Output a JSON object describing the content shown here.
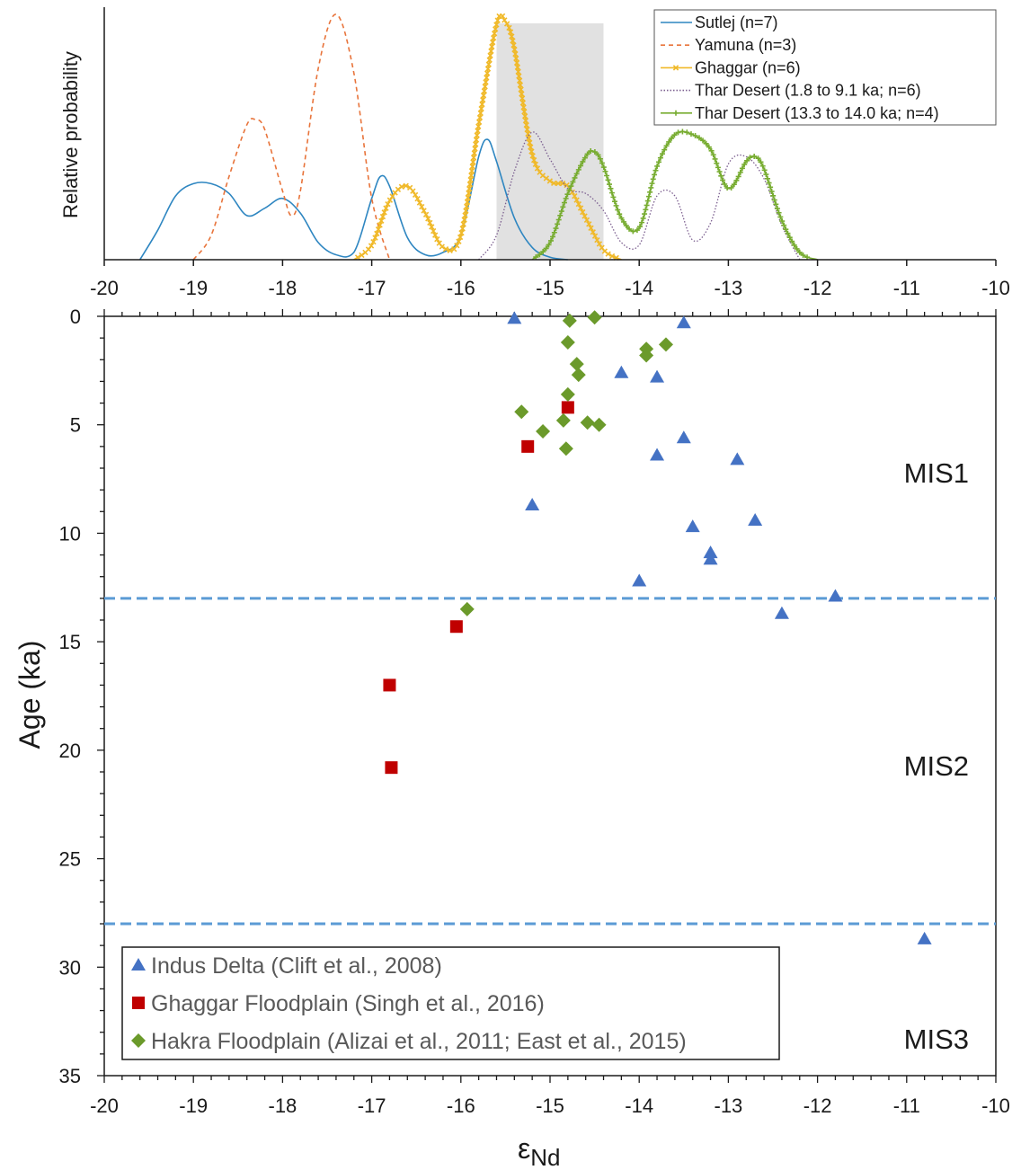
{
  "chart_data": [
    {
      "type": "line",
      "ylabel": "Relative probability",
      "xlim": [
        -20,
        -10
      ],
      "xticks": [
        "-20",
        "-19",
        "-18",
        "-17",
        "-16",
        "-15",
        "-14",
        "-13",
        "-12",
        "-11",
        "-10"
      ],
      "shaded_range_x": [
        -15.6,
        -14.4
      ],
      "legend": {
        "position": "top-right"
      },
      "series": [
        {
          "name": "Sutlej (n=7)",
          "color": "#2e86c1",
          "style": "solid",
          "x": [
            -19.6,
            -19.4,
            -19.2,
            -19.0,
            -18.8,
            -18.6,
            -18.4,
            -18.2,
            -18.0,
            -17.8,
            -17.6,
            -17.4,
            -17.2,
            -17.0,
            -16.9,
            -16.8,
            -16.6,
            -16.4,
            -16.2,
            -16.0,
            -15.8,
            -15.7,
            -15.6,
            -15.4,
            -15.2,
            -15.0,
            -14.8
          ],
          "y": [
            0.0,
            0.12,
            0.26,
            0.31,
            0.31,
            0.27,
            0.18,
            0.21,
            0.25,
            0.19,
            0.07,
            0.02,
            0.03,
            0.25,
            0.34,
            0.3,
            0.09,
            0.02,
            0.03,
            0.1,
            0.42,
            0.49,
            0.4,
            0.17,
            0.05,
            0.01,
            0.0
          ]
        },
        {
          "name": "Yamuna (n=3)",
          "color": "#e8743b",
          "style": "dashed",
          "x": [
            -19.0,
            -18.8,
            -18.6,
            -18.4,
            -18.3,
            -18.2,
            -18.0,
            -17.9,
            -17.8,
            -17.6,
            -17.4,
            -17.2,
            -17.0,
            -16.8
          ],
          "y": [
            0.0,
            0.1,
            0.34,
            0.55,
            0.57,
            0.53,
            0.28,
            0.18,
            0.28,
            0.78,
            1.0,
            0.76,
            0.25,
            0.0
          ]
        },
        {
          "name": "Ghaggar (n=6)",
          "color": "#f0b929",
          "style": "solid-cross",
          "x": [
            -17.2,
            -17.0,
            -16.8,
            -16.6,
            -16.4,
            -16.2,
            -16.0,
            -15.8,
            -15.6,
            -15.5,
            -15.4,
            -15.2,
            -15.0,
            -14.8,
            -14.6,
            -14.4,
            -14.2
          ],
          "y": [
            0.0,
            0.06,
            0.24,
            0.3,
            0.19,
            0.05,
            0.1,
            0.55,
            0.96,
            0.97,
            0.86,
            0.43,
            0.32,
            0.3,
            0.17,
            0.04,
            0.0
          ]
        },
        {
          "name": "Thar Desert (1.8 to 9.1 ka; n=6)",
          "color": "#7b5e8f",
          "style": "dotted",
          "x": [
            -15.8,
            -15.6,
            -15.4,
            -15.2,
            -15.0,
            -14.8,
            -14.6,
            -14.4,
            -14.2,
            -14.0,
            -13.8,
            -13.6,
            -13.4,
            -13.2,
            -13.0,
            -12.8,
            -12.6,
            -12.4,
            -12.2
          ],
          "y": [
            0.0,
            0.1,
            0.36,
            0.52,
            0.41,
            0.29,
            0.27,
            0.2,
            0.07,
            0.06,
            0.26,
            0.26,
            0.08,
            0.15,
            0.39,
            0.42,
            0.33,
            0.14,
            0.0
          ]
        },
        {
          "name": "Thar Desert (13.3 to 14.0 ka; n=4)",
          "color": "#77ac30",
          "style": "solid-plus",
          "x": [
            -15.2,
            -15.0,
            -14.8,
            -14.6,
            -14.5,
            -14.4,
            -14.2,
            -14.0,
            -13.8,
            -13.6,
            -13.4,
            -13.2,
            -13.0,
            -12.8,
            -12.7,
            -12.6,
            -12.4,
            -12.2,
            -12.0
          ],
          "y": [
            0.0,
            0.07,
            0.27,
            0.42,
            0.44,
            0.38,
            0.17,
            0.13,
            0.38,
            0.51,
            0.51,
            0.45,
            0.29,
            0.4,
            0.42,
            0.37,
            0.16,
            0.03,
            0.0
          ]
        }
      ]
    },
    {
      "type": "scatter",
      "xlabel": "ε",
      "xlabel_sub": "Nd",
      "ylabel": "Age (ka)",
      "xlim": [
        -20,
        -10
      ],
      "ylim": [
        0,
        35
      ],
      "y_inverted": true,
      "xticks": [
        "-20",
        "-19",
        "-18",
        "-17",
        "-16",
        "-15",
        "-14",
        "-13",
        "-12",
        "-11",
        "-10"
      ],
      "yticks": [
        "0",
        "5",
        "10",
        "15",
        "20",
        "25",
        "30",
        "35"
      ],
      "boundaries": [
        13,
        28
      ],
      "zone_labels": [
        {
          "text": "MIS1",
          "y": 7.2
        },
        {
          "text": "MIS2",
          "y": 20.7
        },
        {
          "text": "MIS3",
          "y": 33.3
        }
      ],
      "legend": {
        "position": "bottom-left"
      },
      "series": [
        {
          "name": "Indus Delta (Clift et al., 2008)",
          "color": "#4472c4",
          "marker": "triangle",
          "points": [
            [
              -15.4,
              0.1
            ],
            [
              -13.5,
              0.3
            ],
            [
              -14.2,
              2.6
            ],
            [
              -13.8,
              2.8
            ],
            [
              -13.5,
              5.6
            ],
            [
              -13.8,
              6.4
            ],
            [
              -12.9,
              6.6
            ],
            [
              -15.2,
              8.7
            ],
            [
              -13.4,
              9.7
            ],
            [
              -12.7,
              9.4
            ],
            [
              -13.2,
              10.9
            ],
            [
              -13.2,
              11.2
            ],
            [
              -14.0,
              12.2
            ],
            [
              -11.8,
              12.9
            ],
            [
              -12.4,
              13.7
            ],
            [
              -10.8,
              28.7
            ]
          ]
        },
        {
          "name": "Ghaggar Floodplain (Singh et al., 2016)",
          "color": "#c00000",
          "marker": "square",
          "points": [
            [
              -14.8,
              4.2
            ],
            [
              -15.25,
              6.0
            ],
            [
              -16.05,
              14.3
            ],
            [
              -16.8,
              17.0
            ],
            [
              -16.78,
              20.8
            ]
          ]
        },
        {
          "name": "Hakra Floodplain (Alizai et al., 2011; East et al., 2015)",
          "color": "#6b9a2b",
          "marker": "diamond",
          "points": [
            [
              -14.5,
              0.05
            ],
            [
              -14.78,
              0.2
            ],
            [
              -14.8,
              1.2
            ],
            [
              -13.7,
              1.3
            ],
            [
              -13.92,
              1.5
            ],
            [
              -13.92,
              1.8
            ],
            [
              -14.7,
              2.2
            ],
            [
              -14.68,
              2.7
            ],
            [
              -14.8,
              3.6
            ],
            [
              -15.32,
              4.4
            ],
            [
              -14.85,
              4.8
            ],
            [
              -14.58,
              4.9
            ],
            [
              -14.45,
              5.0
            ],
            [
              -15.08,
              5.3
            ],
            [
              -14.82,
              6.1
            ],
            [
              -15.93,
              13.5
            ]
          ]
        }
      ]
    }
  ]
}
